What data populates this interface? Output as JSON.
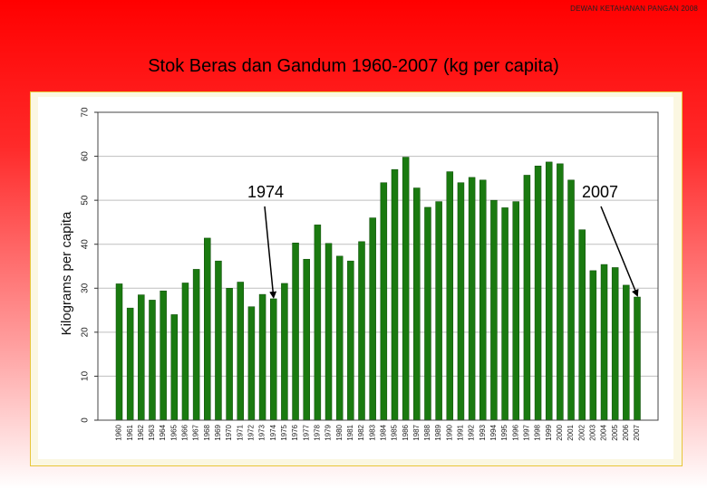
{
  "header_note": "DEWAN KETAHANAN PANGAN 2008",
  "title": "Stok Beras dan Gandum 1960-2007  (kg per capita)",
  "colors": {
    "bar": "#1a7a10",
    "bar_edge": "#0e4a08",
    "plot_border": "#444444",
    "grid": "#bfbfbf"
  },
  "chart_data": {
    "type": "bar",
    "xlabel": "",
    "ylabel": "Kilograms per capita",
    "ylim": [
      0,
      70
    ],
    "yticks": [
      0,
      10,
      20,
      30,
      40,
      50,
      60,
      70
    ],
    "grid": true,
    "categories": [
      "1960",
      "1961",
      "1962",
      "1963",
      "1964",
      "1965",
      "1966",
      "1967",
      "1968",
      "1969",
      "1970",
      "1971",
      "1972",
      "1973",
      "1974",
      "1975",
      "1976",
      "1977",
      "1978",
      "1979",
      "1980",
      "1981",
      "1982",
      "1983",
      "1984",
      "1985",
      "1986",
      "1987",
      "1988",
      "1989",
      "1990",
      "1991",
      "1992",
      "1993",
      "1994",
      "1995",
      "1996",
      "1997",
      "1998",
      "1999",
      "2000",
      "2001",
      "2002",
      "2003",
      "2004",
      "2005",
      "2006",
      "2007"
    ],
    "values": [
      31,
      25.5,
      28.5,
      27.3,
      29.4,
      24,
      31.2,
      34.3,
      41.4,
      36.2,
      30,
      31.4,
      25.8,
      28.6,
      27.6,
      31.1,
      40.3,
      36.6,
      44.4,
      40.2,
      37.3,
      36.2,
      40.6,
      46,
      54,
      57,
      59.8,
      52.8,
      48.4,
      49.7,
      56.5,
      54,
      55.2,
      54.6,
      50,
      48.3,
      49.7,
      55.7,
      57.8,
      58.7,
      58.3,
      54.6,
      43.3,
      34,
      35.4,
      34.7,
      30.7,
      28
    ],
    "annotations": [
      {
        "text": "1974",
        "target": "1974"
      },
      {
        "text": "2007",
        "target": "2007"
      }
    ]
  }
}
